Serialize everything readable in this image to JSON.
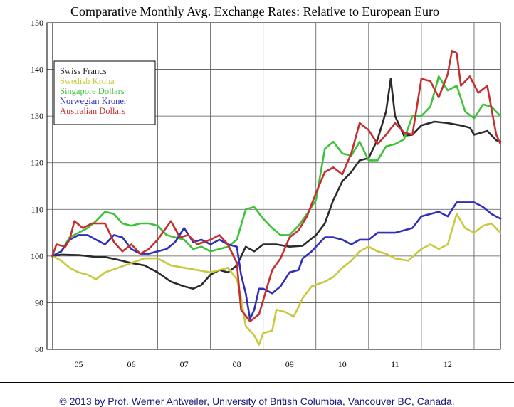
{
  "chart_data": {
    "type": "line",
    "title": "Comparative Monthly Avg. Exchange Rates: Relative to European Euro",
    "xlabel": "",
    "ylabel": "",
    "ylim": [
      80,
      150
    ],
    "yticks": [
      80,
      90,
      100,
      110,
      120,
      130,
      140,
      150
    ],
    "xlim": [
      2004.9,
      2013.5
    ],
    "xtick_labels": [
      "05",
      "06",
      "07",
      "08",
      "09",
      "10",
      "11",
      "12"
    ],
    "legend_position": "top-left",
    "series": [
      {
        "name": "Swiss Francs",
        "color": "#2a2a2a",
        "points": [
          [
            2005.0,
            100.0
          ],
          [
            2005.17,
            100.3
          ],
          [
            2005.5,
            100.2
          ],
          [
            2005.83,
            99.8
          ],
          [
            2006.0,
            99.8
          ],
          [
            2006.25,
            99.2
          ],
          [
            2006.5,
            98.5
          ],
          [
            2006.75,
            98.0
          ],
          [
            2007.0,
            96.5
          ],
          [
            2007.25,
            94.5
          ],
          [
            2007.5,
            93.5
          ],
          [
            2007.67,
            93.0
          ],
          [
            2007.83,
            93.8
          ],
          [
            2008.0,
            96.0
          ],
          [
            2008.17,
            97.0
          ],
          [
            2008.33,
            96.5
          ],
          [
            2008.5,
            98.0
          ],
          [
            2008.67,
            102.0
          ],
          [
            2008.83,
            101.0
          ],
          [
            2009.0,
            102.5
          ],
          [
            2009.25,
            102.5
          ],
          [
            2009.5,
            102.0
          ],
          [
            2009.75,
            102.2
          ],
          [
            2010.0,
            104.5
          ],
          [
            2010.17,
            107.0
          ],
          [
            2010.33,
            112.0
          ],
          [
            2010.5,
            116.0
          ],
          [
            2010.67,
            118.0
          ],
          [
            2010.83,
            120.5
          ],
          [
            2011.0,
            121.0
          ],
          [
            2011.17,
            125.0
          ],
          [
            2011.33,
            131.0
          ],
          [
            2011.42,
            138.0
          ],
          [
            2011.5,
            130.0
          ],
          [
            2011.67,
            125.8
          ],
          [
            2011.83,
            126.0
          ],
          [
            2012.0,
            128.0
          ],
          [
            2012.25,
            128.8
          ],
          [
            2012.5,
            128.5
          ],
          [
            2012.75,
            128.0
          ],
          [
            2012.92,
            127.5
          ],
          [
            2013.0,
            126.0
          ],
          [
            2013.25,
            126.8
          ],
          [
            2013.42,
            124.8
          ],
          [
            2013.5,
            124.5
          ]
        ]
      },
      {
        "name": "Swedish Krona",
        "color": "#c9c83e",
        "points": [
          [
            2005.0,
            100.0
          ],
          [
            2005.17,
            99.0
          ],
          [
            2005.33,
            97.5
          ],
          [
            2005.5,
            96.5
          ],
          [
            2005.67,
            96.0
          ],
          [
            2005.83,
            95.0
          ],
          [
            2006.0,
            96.5
          ],
          [
            2006.25,
            97.5
          ],
          [
            2006.5,
            98.5
          ],
          [
            2006.75,
            99.5
          ],
          [
            2007.0,
            99.5
          ],
          [
            2007.25,
            98.0
          ],
          [
            2007.5,
            97.5
          ],
          [
            2007.75,
            97.0
          ],
          [
            2008.0,
            96.5
          ],
          [
            2008.17,
            97.0
          ],
          [
            2008.33,
            97.5
          ],
          [
            2008.5,
            95.0
          ],
          [
            2008.58,
            91.0
          ],
          [
            2008.67,
            85.0
          ],
          [
            2008.83,
            83.0
          ],
          [
            2008.92,
            81.0
          ],
          [
            2009.0,
            83.5
          ],
          [
            2009.17,
            84.0
          ],
          [
            2009.25,
            88.5
          ],
          [
            2009.42,
            88.0
          ],
          [
            2009.5,
            87.5
          ],
          [
            2009.58,
            87.0
          ],
          [
            2009.75,
            91.0
          ],
          [
            2009.92,
            93.5
          ],
          [
            2010.17,
            94.5
          ],
          [
            2010.33,
            95.5
          ],
          [
            2010.5,
            97.5
          ],
          [
            2010.67,
            99.0
          ],
          [
            2010.83,
            101.0
          ],
          [
            2011.0,
            102.0
          ],
          [
            2011.17,
            101.0
          ],
          [
            2011.33,
            100.5
          ],
          [
            2011.5,
            99.5
          ],
          [
            2011.75,
            99.0
          ],
          [
            2012.0,
            101.5
          ],
          [
            2012.17,
            102.5
          ],
          [
            2012.33,
            101.5
          ],
          [
            2012.5,
            102.5
          ],
          [
            2012.67,
            109.0
          ],
          [
            2012.83,
            106.0
          ],
          [
            2013.0,
            105.0
          ],
          [
            2013.17,
            106.5
          ],
          [
            2013.33,
            107.0
          ],
          [
            2013.5,
            105.0
          ]
        ]
      },
      {
        "name": "Singapore Dollars",
        "color": "#3fc23a",
        "points": [
          [
            2005.0,
            100.0
          ],
          [
            2005.17,
            101.0
          ],
          [
            2005.33,
            104.0
          ],
          [
            2005.5,
            105.0
          ],
          [
            2005.67,
            106.0
          ],
          [
            2005.83,
            107.5
          ],
          [
            2006.0,
            109.5
          ],
          [
            2006.17,
            109.0
          ],
          [
            2006.33,
            107.0
          ],
          [
            2006.5,
            106.5
          ],
          [
            2006.67,
            107.0
          ],
          [
            2006.83,
            107.0
          ],
          [
            2007.0,
            106.5
          ],
          [
            2007.17,
            104.5
          ],
          [
            2007.33,
            104.0
          ],
          [
            2007.5,
            103.5
          ],
          [
            2007.67,
            101.5
          ],
          [
            2007.83,
            102.0
          ],
          [
            2008.0,
            101.0
          ],
          [
            2008.17,
            101.5
          ],
          [
            2008.33,
            102.0
          ],
          [
            2008.5,
            103.5
          ],
          [
            2008.67,
            110.0
          ],
          [
            2008.83,
            110.5
          ],
          [
            2009.0,
            108.0
          ],
          [
            2009.17,
            106.0
          ],
          [
            2009.33,
            104.5
          ],
          [
            2009.5,
            104.5
          ],
          [
            2009.67,
            106.5
          ],
          [
            2009.83,
            109.0
          ],
          [
            2010.0,
            112.0
          ],
          [
            2010.17,
            123.0
          ],
          [
            2010.33,
            124.5
          ],
          [
            2010.5,
            122.0
          ],
          [
            2010.67,
            121.5
          ],
          [
            2010.83,
            124.5
          ],
          [
            2011.0,
            120.5
          ],
          [
            2011.17,
            120.5
          ],
          [
            2011.33,
            123.5
          ],
          [
            2011.5,
            124.0
          ],
          [
            2011.67,
            125.0
          ],
          [
            2011.83,
            130.0
          ],
          [
            2012.0,
            130.0
          ],
          [
            2012.17,
            132.0
          ],
          [
            2012.33,
            138.5
          ],
          [
            2012.5,
            135.5
          ],
          [
            2012.67,
            136.5
          ],
          [
            2012.83,
            131.0
          ],
          [
            2013.0,
            129.5
          ],
          [
            2013.17,
            132.5
          ],
          [
            2013.33,
            132.0
          ],
          [
            2013.5,
            130.0
          ]
        ]
      },
      {
        "name": "Norwegian Kroner",
        "color": "#2f2fb8",
        "points": [
          [
            2005.0,
            100.0
          ],
          [
            2005.17,
            101.0
          ],
          [
            2005.33,
            103.5
          ],
          [
            2005.5,
            104.5
          ],
          [
            2005.67,
            104.5
          ],
          [
            2005.83,
            103.5
          ],
          [
            2006.0,
            102.5
          ],
          [
            2006.17,
            104.5
          ],
          [
            2006.33,
            104.0
          ],
          [
            2006.5,
            101.5
          ],
          [
            2006.67,
            100.5
          ],
          [
            2006.83,
            100.5
          ],
          [
            2007.0,
            101.0
          ],
          [
            2007.17,
            101.5
          ],
          [
            2007.33,
            103.0
          ],
          [
            2007.5,
            106.0
          ],
          [
            2007.67,
            103.0
          ],
          [
            2007.83,
            103.5
          ],
          [
            2008.0,
            102.5
          ],
          [
            2008.17,
            103.5
          ],
          [
            2008.33,
            102.5
          ],
          [
            2008.5,
            102.0
          ],
          [
            2008.58,
            96.0
          ],
          [
            2008.67,
            92.0
          ],
          [
            2008.75,
            86.5
          ],
          [
            2008.83,
            88.5
          ],
          [
            2008.92,
            93.0
          ],
          [
            2009.0,
            93.0
          ],
          [
            2009.17,
            92.0
          ],
          [
            2009.33,
            93.5
          ],
          [
            2009.5,
            96.5
          ],
          [
            2009.67,
            97.0
          ],
          [
            2009.75,
            99.5
          ],
          [
            2009.92,
            101.0
          ],
          [
            2010.0,
            102.0
          ],
          [
            2010.17,
            104.0
          ],
          [
            2010.33,
            104.0
          ],
          [
            2010.5,
            103.5
          ],
          [
            2010.67,
            102.5
          ],
          [
            2010.83,
            103.5
          ],
          [
            2011.0,
            103.5
          ],
          [
            2011.17,
            105.0
          ],
          [
            2011.33,
            105.0
          ],
          [
            2011.5,
            105.0
          ],
          [
            2011.67,
            105.5
          ],
          [
            2011.83,
            106.0
          ],
          [
            2012.0,
            108.5
          ],
          [
            2012.17,
            109.0
          ],
          [
            2012.33,
            109.5
          ],
          [
            2012.5,
            108.5
          ],
          [
            2012.67,
            111.5
          ],
          [
            2012.83,
            111.5
          ],
          [
            2013.0,
            111.5
          ],
          [
            2013.17,
            110.5
          ],
          [
            2013.33,
            109.0
          ],
          [
            2013.5,
            108.0
          ]
        ]
      },
      {
        "name": "Australian Dollars",
        "color": "#c43030",
        "points": [
          [
            2005.0,
            100.0
          ],
          [
            2005.08,
            102.5
          ],
          [
            2005.25,
            102.0
          ],
          [
            2005.33,
            103.5
          ],
          [
            2005.42,
            107.5
          ],
          [
            2005.58,
            106.0
          ],
          [
            2005.75,
            107.0
          ],
          [
            2006.0,
            107.0
          ],
          [
            2006.17,
            103.0
          ],
          [
            2006.33,
            101.0
          ],
          [
            2006.5,
            102.5
          ],
          [
            2006.67,
            100.5
          ],
          [
            2006.83,
            101.5
          ],
          [
            2007.0,
            103.5
          ],
          [
            2007.25,
            107.5
          ],
          [
            2007.42,
            104.0
          ],
          [
            2007.58,
            104.5
          ],
          [
            2007.75,
            102.5
          ],
          [
            2008.0,
            103.5
          ],
          [
            2008.17,
            104.5
          ],
          [
            2008.33,
            102.5
          ],
          [
            2008.5,
            98.5
          ],
          [
            2008.58,
            88.5
          ],
          [
            2008.75,
            86.0
          ],
          [
            2008.92,
            87.5
          ],
          [
            2009.17,
            97.0
          ],
          [
            2009.33,
            99.5
          ],
          [
            2009.5,
            104.0
          ],
          [
            2009.67,
            105.5
          ],
          [
            2009.83,
            108.5
          ],
          [
            2010.0,
            113.5
          ],
          [
            2010.17,
            118.0
          ],
          [
            2010.33,
            119.0
          ],
          [
            2010.5,
            117.5
          ],
          [
            2010.67,
            122.0
          ],
          [
            2010.83,
            128.5
          ],
          [
            2011.0,
            127.0
          ],
          [
            2011.17,
            124.0
          ],
          [
            2011.33,
            126.0
          ],
          [
            2011.5,
            128.5
          ],
          [
            2011.67,
            126.5
          ],
          [
            2011.83,
            126.0
          ],
          [
            2012.0,
            138.0
          ],
          [
            2012.17,
            137.5
          ],
          [
            2012.33,
            134.0
          ],
          [
            2012.5,
            139.0
          ],
          [
            2012.58,
            144.0
          ],
          [
            2012.67,
            143.5
          ],
          [
            2012.75,
            136.5
          ],
          [
            2012.92,
            138.5
          ],
          [
            2013.08,
            135.0
          ],
          [
            2013.25,
            136.5
          ],
          [
            2013.33,
            131.5
          ],
          [
            2013.42,
            126.0
          ],
          [
            2013.5,
            124.0
          ]
        ]
      }
    ]
  },
  "footer": {
    "text": "© 2013 by Prof. Werner Antweiler, University of British Columbia, Vancouver BC, Canada."
  }
}
